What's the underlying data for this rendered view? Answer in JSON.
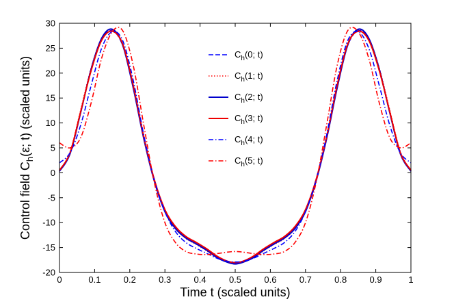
{
  "chart_data": {
    "type": "line",
    "title": "",
    "xlabel": "Time t (scaled units)",
    "ylabel_parts": [
      "Control field C",
      "h",
      "(ε; t) (scaled units)"
    ],
    "xlim": [
      0,
      1
    ],
    "ylim": [
      -20,
      30
    ],
    "xticks": [
      0,
      0.1,
      0.2,
      0.3,
      0.4,
      0.5,
      0.6,
      0.7,
      0.8,
      0.9,
      1
    ],
    "xtick_labels": [
      "0",
      "0.1",
      "0.2",
      "0.3",
      "0.4",
      "0.5",
      "0.6",
      "0.7",
      "0.8",
      "0.9",
      "1"
    ],
    "yticks": [
      -20,
      -15,
      -10,
      -5,
      0,
      5,
      10,
      15,
      20,
      25,
      30
    ],
    "ytick_labels": [
      "-20",
      "-15",
      "-10",
      "-5",
      "0",
      "5",
      "10",
      "15",
      "20",
      "25",
      "30"
    ],
    "grid": false,
    "legend_position": "top-center",
    "series": [
      {
        "name": "C_h(0; t)",
        "legend_base": "C",
        "legend_sub": "h",
        "legend_arg": "(0; t)",
        "color": "#0000ff",
        "style": "dashed",
        "x": [
          0,
          0.03,
          0.06,
          0.09,
          0.12,
          0.15,
          0.18,
          0.21,
          0.24,
          0.27,
          0.3,
          0.33,
          0.36,
          0.39,
          0.42,
          0.45,
          0.48,
          0.5,
          0.52,
          0.55,
          0.58,
          0.61,
          0.64,
          0.67,
          0.7,
          0.73,
          0.76,
          0.79,
          0.82,
          0.85,
          0.88,
          0.91,
          0.94,
          0.97,
          1
        ],
        "values": [
          0.5,
          4,
          12,
          20.5,
          26.8,
          28.5,
          25.5,
          17,
          7,
          -1.5,
          -7.5,
          -11,
          -13,
          -14.2,
          -15.5,
          -17,
          -18,
          -18.2,
          -18,
          -17,
          -15.5,
          -14.2,
          -13,
          -11,
          -7.5,
          -1.5,
          7,
          17,
          25.5,
          28.5,
          26.8,
          20.5,
          12,
          4,
          0.5
        ]
      },
      {
        "name": "C_h(1; t)",
        "legend_base": "C",
        "legend_sub": "h",
        "legend_arg": "(1; t)",
        "color": "#ff0000",
        "style": "dotted",
        "x": [
          0,
          0.03,
          0.06,
          0.09,
          0.12,
          0.15,
          0.18,
          0.21,
          0.24,
          0.27,
          0.3,
          0.33,
          0.36,
          0.39,
          0.42,
          0.45,
          0.48,
          0.5,
          0.52,
          0.55,
          0.58,
          0.61,
          0.64,
          0.67,
          0.7,
          0.73,
          0.76,
          0.79,
          0.82,
          0.85,
          0.88,
          0.91,
          0.94,
          0.97,
          1
        ],
        "values": [
          0.4,
          4.2,
          12.5,
          21,
          27,
          28.7,
          25.8,
          17.2,
          7,
          -1.6,
          -7.7,
          -11.2,
          -13.2,
          -14.4,
          -15.7,
          -17.1,
          -18,
          -18.2,
          -18,
          -17.1,
          -15.7,
          -14.4,
          -13.2,
          -11.2,
          -7.7,
          -1.6,
          7,
          17.2,
          25.8,
          28.7,
          27,
          21,
          12.5,
          4.2,
          0.4
        ]
      },
      {
        "name": "C_h(2; t)",
        "legend_base": "C",
        "legend_sub": "h",
        "legend_arg": "(2; t)",
        "color": "#0000cc",
        "style": "solid",
        "x": [
          0,
          0.03,
          0.06,
          0.09,
          0.12,
          0.15,
          0.18,
          0.21,
          0.24,
          0.27,
          0.3,
          0.33,
          0.36,
          0.39,
          0.42,
          0.45,
          0.48,
          0.5,
          0.52,
          0.55,
          0.58,
          0.61,
          0.64,
          0.67,
          0.7,
          0.73,
          0.76,
          0.79,
          0.82,
          0.85,
          0.88,
          0.91,
          0.94,
          0.97,
          1
        ],
        "values": [
          0.3,
          3.8,
          12,
          20.8,
          27,
          28.8,
          25.6,
          17,
          6.8,
          -1.7,
          -7.8,
          -11.2,
          -13.1,
          -14.3,
          -15.6,
          -17.1,
          -18,
          -18.3,
          -18,
          -17.1,
          -15.6,
          -14.3,
          -13.1,
          -11.2,
          -7.8,
          -1.7,
          6.8,
          17,
          25.6,
          28.8,
          27,
          20.8,
          12,
          3.8,
          0.3
        ]
      },
      {
        "name": "C_h(3; t)",
        "legend_base": "C",
        "legend_sub": "h",
        "legend_arg": "(3; t)",
        "color": "#ee0000",
        "style": "solid",
        "x": [
          0,
          0.03,
          0.06,
          0.09,
          0.12,
          0.15,
          0.18,
          0.21,
          0.24,
          0.27,
          0.3,
          0.33,
          0.36,
          0.39,
          0.42,
          0.45,
          0.48,
          0.5,
          0.52,
          0.55,
          0.58,
          0.61,
          0.64,
          0.67,
          0.7,
          0.73,
          0.76,
          0.79,
          0.82,
          0.85,
          0.88,
          0.91,
          0.94,
          0.97,
          1
        ],
        "values": [
          0.5,
          4,
          12.2,
          20.5,
          26.6,
          28.4,
          25.8,
          17.5,
          7.2,
          -1.4,
          -7.4,
          -10.8,
          -12.8,
          -14,
          -15.3,
          -16.8,
          -17.8,
          -18,
          -17.8,
          -16.8,
          -15.3,
          -14,
          -12.8,
          -10.8,
          -7.4,
          -1.4,
          7.2,
          17.5,
          25.8,
          28.4,
          26.6,
          20.5,
          12.2,
          4,
          0.5
        ]
      },
      {
        "name": "C_h(4; t)",
        "legend_base": "C",
        "legend_sub": "h",
        "legend_arg": "(4; t)",
        "color": "#0000ff",
        "style": "dashdot",
        "x": [
          0,
          0.03,
          0.06,
          0.09,
          0.12,
          0.15,
          0.18,
          0.21,
          0.24,
          0.27,
          0.3,
          0.33,
          0.36,
          0.39,
          0.42,
          0.45,
          0.48,
          0.5,
          0.52,
          0.55,
          0.58,
          0.61,
          0.64,
          0.67,
          0.7,
          0.73,
          0.76,
          0.79,
          0.82,
          0.85,
          0.88,
          0.91,
          0.94,
          0.97,
          1
        ],
        "values": [
          2,
          4,
          9.5,
          17.5,
          25,
          28.3,
          26.5,
          18.5,
          7.5,
          -1.5,
          -7.8,
          -11.8,
          -14,
          -15.2,
          -16.2,
          -17.2,
          -17.8,
          -17.9,
          -17.8,
          -17.2,
          -16.2,
          -15.2,
          -14,
          -11.8,
          -7.8,
          -1.5,
          7.5,
          18.5,
          26.5,
          28.3,
          25,
          17.5,
          9.5,
          4,
          2
        ]
      },
      {
        "name": "C_h(5; t)",
        "legend_base": "C",
        "legend_sub": "h",
        "legend_arg": "(5; t)",
        "color": "#ff0000",
        "style": "dashdot",
        "x": [
          0,
          0.03,
          0.06,
          0.09,
          0.12,
          0.15,
          0.18,
          0.21,
          0.24,
          0.27,
          0.3,
          0.33,
          0.36,
          0.39,
          0.42,
          0.45,
          0.48,
          0.5,
          0.52,
          0.55,
          0.58,
          0.61,
          0.64,
          0.67,
          0.7,
          0.73,
          0.76,
          0.79,
          0.82,
          0.85,
          0.88,
          0.91,
          0.94,
          0.97,
          1
        ],
        "values": [
          6,
          5,
          7,
          14,
          23,
          28.3,
          28.5,
          21.5,
          9.5,
          -2,
          -10,
          -14,
          -15.8,
          -16.3,
          -16.4,
          -16.2,
          -15.9,
          -15.8,
          -15.9,
          -16.2,
          -16.4,
          -16.3,
          -15.8,
          -14,
          -10,
          -2,
          9.5,
          21.5,
          28.5,
          28.3,
          23,
          14,
          7,
          5,
          6
        ]
      }
    ]
  }
}
